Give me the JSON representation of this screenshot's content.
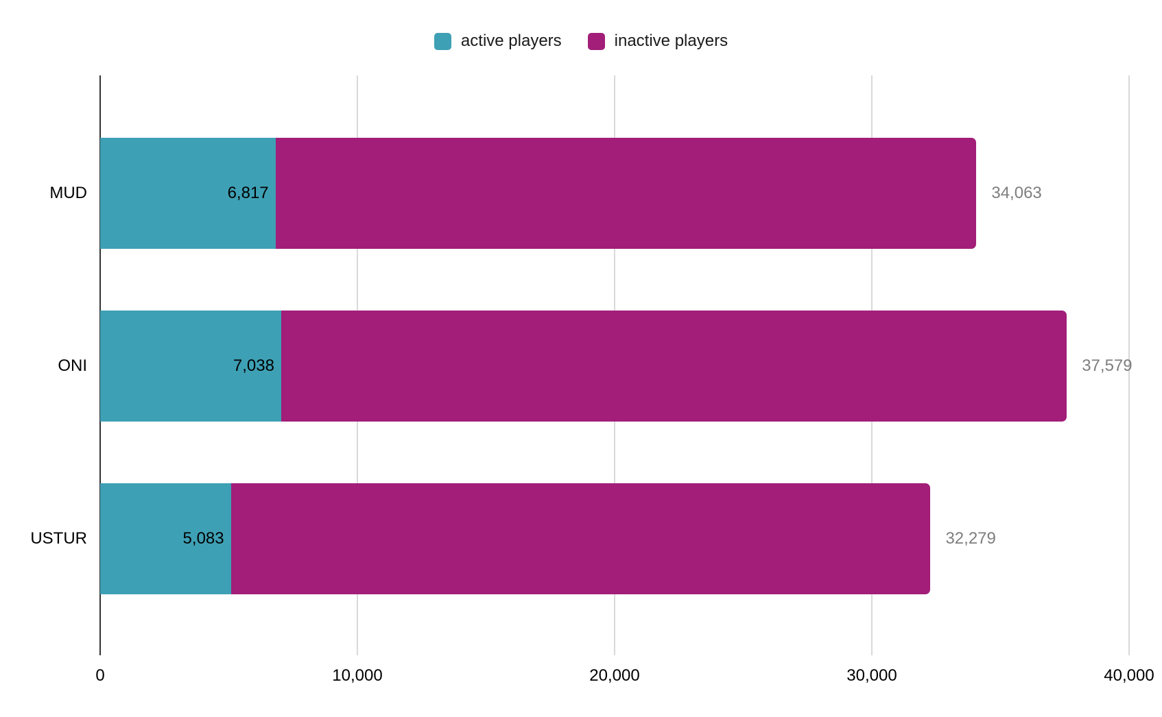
{
  "chart_data": {
    "type": "bar",
    "orientation": "horizontal",
    "stacked": true,
    "title": "",
    "xlabel": "",
    "ylabel": "",
    "categories": [
      "MUD",
      "ONI",
      "USTUR"
    ],
    "series": [
      {
        "name": "active players",
        "color": "#3EA0B5",
        "values": [
          6817,
          7038,
          5083
        ]
      },
      {
        "name": "inactive players",
        "color": "#A21E78",
        "values": [
          27246,
          30541,
          27196
        ]
      }
    ],
    "totals": [
      34063,
      37579,
      32279
    ],
    "active_value_labels": [
      "6,817",
      "7,038",
      "5,083"
    ],
    "total_value_labels": [
      "34,063",
      "37,579",
      "32,279"
    ],
    "xlim": [
      0,
      40000
    ],
    "x_tick_values": [
      0,
      10000,
      20000,
      30000,
      40000
    ],
    "x_tick_labels": [
      "0",
      "10,000",
      "20,000",
      "30,000",
      "40,000"
    ],
    "grid": true,
    "legend_position": "top"
  },
  "colors": {
    "background": "#ffffff",
    "active_series": "#3EA0B5",
    "inactive_series": "#A21E78",
    "gridline": "#d9d9d9",
    "axis_line": "#333333",
    "tick_label": "#000000",
    "total_label": "#7e7e7e"
  }
}
